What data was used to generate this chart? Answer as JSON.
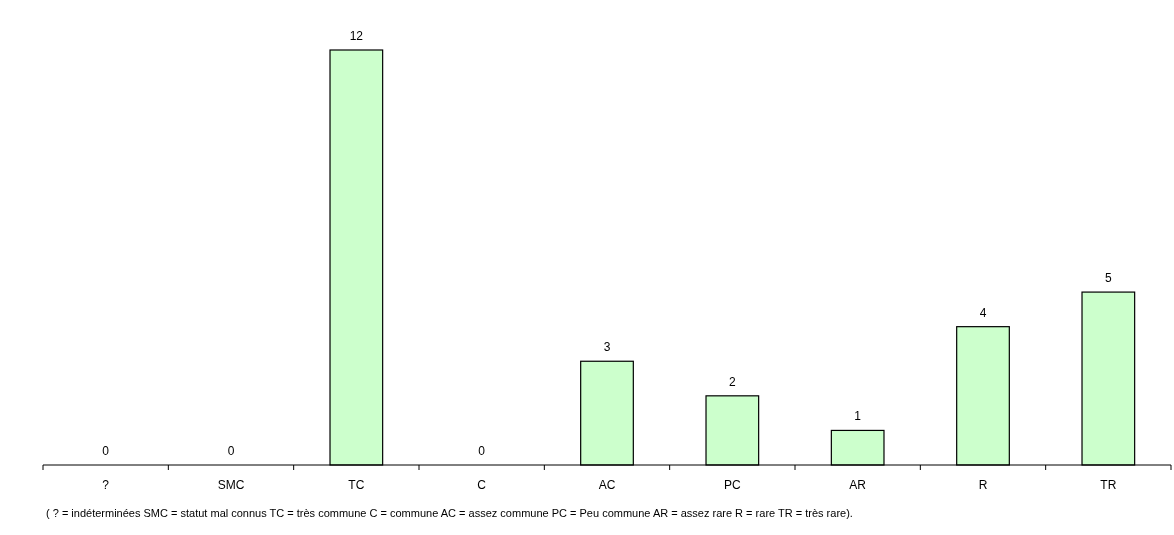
{
  "chart_data": {
    "type": "bar",
    "categories": [
      "?",
      "SMC",
      "TC",
      "C",
      "AC",
      "PC",
      "AR",
      "R",
      "TR"
    ],
    "values": [
      0,
      0,
      12,
      0,
      3,
      2,
      1,
      4,
      5
    ],
    "color": "#ccffcc",
    "data_labels": true,
    "annotations": [
      "( ? = indéterminées SMC = statut mal connus TC = très commune C = commune AC = assez commune PC = Peu commune AR = assez rare R = rare TR = très rare)."
    ]
  }
}
